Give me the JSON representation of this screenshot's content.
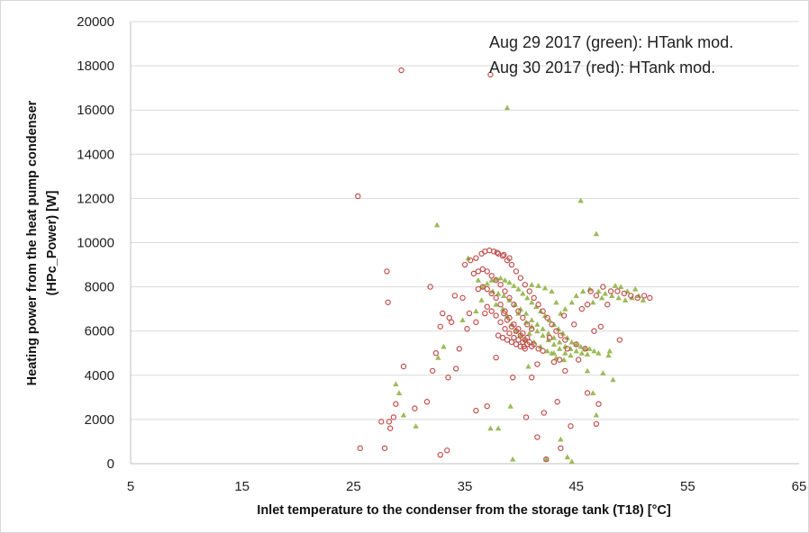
{
  "chart_data": {
    "type": "scatter",
    "xlabel": "Inlet temperature to the condenser from the storage tank (T18) [°C]",
    "ylabel_line1": "Heating power from the heat pump condenser",
    "ylabel_line2": "(HPc_Power) [W]",
    "xlim": [
      5,
      65
    ],
    "ylim": [
      0,
      20000
    ],
    "x_ticks": [
      "5",
      "15",
      "25",
      "35",
      "45",
      "55",
      "65"
    ],
    "y_ticks": [
      "0",
      "2000",
      "4000",
      "6000",
      "8000",
      "10000",
      "12000",
      "14000",
      "16000",
      "18000",
      "20000"
    ],
    "grid": "horizontal",
    "annotations": [
      "Aug 29 2017 (green): HTank mod.",
      "Aug 30 2017 (red): HTank mod."
    ],
    "colors": {
      "green": "#9bbb59",
      "red": "#c0504d",
      "grid": "#d9d9d9",
      "axis": "#bfbfbf"
    },
    "series": [
      {
        "key": "green",
        "marker": "triangle",
        "points": [
          [
            32.5,
            10800
          ],
          [
            38.8,
            16100
          ],
          [
            45.4,
            11900
          ],
          [
            46.8,
            10400
          ],
          [
            28.8,
            3600
          ],
          [
            29.1,
            3200
          ],
          [
            29.5,
            2200
          ],
          [
            30.6,
            1700
          ],
          [
            32.6,
            4800
          ],
          [
            33.1,
            5300
          ],
          [
            34.8,
            6500
          ],
          [
            35.3,
            9300
          ],
          [
            36.2,
            8300
          ],
          [
            36.5,
            7400
          ],
          [
            36.0,
            6900
          ],
          [
            37.3,
            1600
          ],
          [
            38.0,
            1600
          ],
          [
            39.1,
            2600
          ],
          [
            39.3,
            200
          ],
          [
            40.7,
            4400
          ],
          [
            42.3,
            200
          ],
          [
            43.6,
            1100
          ],
          [
            44.2,
            300
          ],
          [
            44.6,
            100
          ],
          [
            46.0,
            4200
          ],
          [
            46.5,
            3200
          ],
          [
            46.8,
            2200
          ],
          [
            47.4,
            4100
          ],
          [
            48.3,
            3800
          ],
          [
            47.9,
            4900
          ],
          [
            48.0,
            5100
          ],
          [
            36.6,
            8000
          ],
          [
            37.0,
            8150
          ],
          [
            37.4,
            8300
          ],
          [
            37.8,
            8350
          ],
          [
            38.2,
            8400
          ],
          [
            38.6,
            8300
          ],
          [
            39.0,
            8200
          ],
          [
            39.4,
            8050
          ],
          [
            39.8,
            7900
          ],
          [
            40.2,
            7700
          ],
          [
            40.6,
            7500
          ],
          [
            41.0,
            7300
          ],
          [
            41.4,
            7100
          ],
          [
            41.8,
            6900
          ],
          [
            42.2,
            6700
          ],
          [
            42.6,
            6500
          ],
          [
            43.0,
            6300
          ],
          [
            43.4,
            6100
          ],
          [
            43.8,
            5900
          ],
          [
            44.2,
            5700
          ],
          [
            44.6,
            5500
          ],
          [
            45.0,
            5400
          ],
          [
            45.4,
            5300
          ],
          [
            45.8,
            5200
          ],
          [
            46.2,
            5200
          ],
          [
            46.6,
            5100
          ],
          [
            47.0,
            5000
          ],
          [
            37.5,
            7800
          ],
          [
            38.0,
            7700
          ],
          [
            38.5,
            7600
          ],
          [
            39.0,
            7400
          ],
          [
            39.5,
            7200
          ],
          [
            40.0,
            7000
          ],
          [
            40.5,
            6800
          ],
          [
            41.0,
            6500
          ],
          [
            41.5,
            6300
          ],
          [
            42.0,
            6100
          ],
          [
            42.5,
            5900
          ],
          [
            43.0,
            5700
          ],
          [
            43.5,
            5500
          ],
          [
            44.0,
            5300
          ],
          [
            44.5,
            5200
          ],
          [
            45.0,
            5100
          ],
          [
            45.5,
            5000
          ],
          [
            46.0,
            4950
          ],
          [
            40.5,
            6400
          ],
          [
            41.0,
            6200
          ],
          [
            41.5,
            6000
          ],
          [
            42.0,
            5800
          ],
          [
            42.5,
            5600
          ],
          [
            43.0,
            5400
          ],
          [
            43.5,
            5200
          ],
          [
            44.0,
            5000
          ],
          [
            44.5,
            4900
          ],
          [
            42.8,
            5000
          ],
          [
            43.2,
            4800
          ],
          [
            43.9,
            4700
          ],
          [
            41.0,
            8100
          ],
          [
            41.6,
            8050
          ],
          [
            42.2,
            7950
          ],
          [
            42.8,
            7800
          ],
          [
            43.2,
            7300
          ],
          [
            43.6,
            6800
          ],
          [
            44.0,
            7000
          ],
          [
            44.6,
            7300
          ],
          [
            45.0,
            7600
          ],
          [
            45.6,
            7800
          ],
          [
            46.2,
            7900
          ],
          [
            47.0,
            7800
          ],
          [
            47.6,
            7700
          ],
          [
            48.2,
            7600
          ],
          [
            48.8,
            7500
          ],
          [
            49.4,
            7400
          ],
          [
            50.0,
            7500
          ],
          [
            50.6,
            7600
          ],
          [
            51.0,
            7400
          ],
          [
            49.0,
            8000
          ],
          [
            48.5,
            8050
          ],
          [
            49.6,
            7800
          ],
          [
            50.3,
            7900
          ],
          [
            47.3,
            7500
          ],
          [
            46.5,
            7300
          ],
          [
            38.8,
            6700
          ],
          [
            39.2,
            6300
          ],
          [
            39.6,
            6000
          ],
          [
            40.0,
            5800
          ],
          [
            40.4,
            5600
          ],
          [
            41.2,
            5500
          ],
          [
            41.8,
            5300
          ],
          [
            42.4,
            5100
          ],
          [
            43.0,
            5000
          ],
          [
            40.8,
            5900
          ],
          [
            39.8,
            6800
          ],
          [
            38.4,
            7000
          ],
          [
            37.8,
            7200
          ]
        ]
      },
      {
        "key": "red",
        "marker": "circle",
        "points": [
          [
            29.3,
            17800
          ],
          [
            37.3,
            17600
          ],
          [
            25.4,
            12100
          ],
          [
            28.0,
            8700
          ],
          [
            28.1,
            7300
          ],
          [
            25.6,
            700
          ],
          [
            27.5,
            1900
          ],
          [
            27.8,
            700
          ],
          [
            28.2,
            1900
          ],
          [
            28.3,
            1600
          ],
          [
            28.6,
            2100
          ],
          [
            28.8,
            2700
          ],
          [
            29.5,
            4400
          ],
          [
            30.5,
            2500
          ],
          [
            31.6,
            2800
          ],
          [
            32.1,
            4200
          ],
          [
            32.4,
            5000
          ],
          [
            32.8,
            400
          ],
          [
            33.4,
            600
          ],
          [
            33.5,
            3900
          ],
          [
            32.8,
            6200
          ],
          [
            33.0,
            6800
          ],
          [
            34.2,
            4300
          ],
          [
            34.5,
            5200
          ],
          [
            35.2,
            6100
          ],
          [
            35.4,
            6800
          ],
          [
            36.0,
            6400
          ],
          [
            36.0,
            2400
          ],
          [
            37.0,
            2600
          ],
          [
            37.8,
            4800
          ],
          [
            39.3,
            3900
          ],
          [
            40.5,
            2100
          ],
          [
            41.5,
            1200
          ],
          [
            42.1,
            2300
          ],
          [
            42.3,
            200
          ],
          [
            43.6,
            700
          ],
          [
            43.3,
            2800
          ],
          [
            44.0,
            4200
          ],
          [
            44.5,
            1700
          ],
          [
            45.2,
            4700
          ],
          [
            46.0,
            3200
          ],
          [
            46.8,
            1800
          ],
          [
            47.0,
            2700
          ],
          [
            46.6,
            6000
          ],
          [
            47.2,
            6200
          ],
          [
            48.9,
            5600
          ],
          [
            31.9,
            8000
          ],
          [
            34.1,
            7600
          ],
          [
            33.8,
            6400
          ],
          [
            36.5,
            9500
          ],
          [
            36.8,
            9600
          ],
          [
            37.2,
            9650
          ],
          [
            37.6,
            9600
          ],
          [
            38.0,
            9500
          ],
          [
            38.4,
            9400
          ],
          [
            38.8,
            9200
          ],
          [
            39.2,
            9000
          ],
          [
            39.6,
            8700
          ],
          [
            40.0,
            8400
          ],
          [
            40.4,
            8100
          ],
          [
            40.8,
            7800
          ],
          [
            41.2,
            7500
          ],
          [
            41.6,
            7200
          ],
          [
            42.0,
            6900
          ],
          [
            42.4,
            6600
          ],
          [
            42.8,
            6300
          ],
          [
            43.2,
            6000
          ],
          [
            43.6,
            5800
          ],
          [
            44.0,
            5600
          ],
          [
            35.8,
            8600
          ],
          [
            36.2,
            8700
          ],
          [
            36.6,
            8800
          ],
          [
            37.0,
            8700
          ],
          [
            37.4,
            8500
          ],
          [
            37.8,
            8300
          ],
          [
            38.2,
            8100
          ],
          [
            38.6,
            7800
          ],
          [
            39.0,
            7500
          ],
          [
            39.4,
            7200
          ],
          [
            39.8,
            6900
          ],
          [
            40.2,
            6600
          ],
          [
            40.6,
            6300
          ],
          [
            41.0,
            6100
          ],
          [
            36.2,
            7900
          ],
          [
            36.6,
            8000
          ],
          [
            37.0,
            7900
          ],
          [
            37.4,
            7700
          ],
          [
            37.8,
            7500
          ],
          [
            38.2,
            7200
          ],
          [
            38.6,
            6900
          ],
          [
            39.0,
            6600
          ],
          [
            39.4,
            6300
          ],
          [
            39.8,
            6100
          ],
          [
            40.2,
            5900
          ],
          [
            40.6,
            5700
          ],
          [
            37.0,
            7100
          ],
          [
            37.4,
            6900
          ],
          [
            37.8,
            6700
          ],
          [
            38.2,
            6400
          ],
          [
            38.6,
            6100
          ],
          [
            39.0,
            5900
          ],
          [
            39.4,
            5700
          ],
          [
            39.8,
            5600
          ],
          [
            40.2,
            5500
          ],
          [
            40.6,
            5400
          ],
          [
            41.0,
            5300
          ],
          [
            38.5,
            6800
          ],
          [
            38.8,
            6500
          ],
          [
            39.2,
            6200
          ],
          [
            39.6,
            6000
          ],
          [
            40.0,
            5800
          ],
          [
            40.4,
            5600
          ],
          [
            40.8,
            5500
          ],
          [
            41.2,
            5400
          ],
          [
            41.6,
            5200
          ],
          [
            42.0,
            5100
          ],
          [
            38.0,
            5800
          ],
          [
            38.4,
            5700
          ],
          [
            38.8,
            5600
          ],
          [
            39.2,
            5500
          ],
          [
            39.6,
            5400
          ],
          [
            40.0,
            5300
          ],
          [
            40.4,
            5200
          ],
          [
            35.0,
            9000
          ],
          [
            35.5,
            9200
          ],
          [
            36.0,
            9300
          ],
          [
            37.9,
            9550
          ],
          [
            38.5,
            9450
          ],
          [
            39.0,
            9300
          ],
          [
            43.0,
            4600
          ],
          [
            43.5,
            4700
          ],
          [
            44.2,
            5200
          ],
          [
            45.0,
            5400
          ],
          [
            45.8,
            5200
          ],
          [
            44.8,
            6300
          ],
          [
            43.9,
            6700
          ],
          [
            46.3,
            7800
          ],
          [
            46.8,
            7600
          ],
          [
            47.4,
            8000
          ],
          [
            48.1,
            7800
          ],
          [
            48.7,
            7800
          ],
          [
            49.3,
            7700
          ],
          [
            49.9,
            7600
          ],
          [
            50.5,
            7500
          ],
          [
            51.1,
            7600
          ],
          [
            51.6,
            7500
          ],
          [
            47.8,
            7200
          ],
          [
            46.0,
            7200
          ],
          [
            45.5,
            7000
          ],
          [
            42.6,
            5700
          ],
          [
            41.5,
            4500
          ],
          [
            41.0,
            3900
          ],
          [
            40.3,
            5300
          ],
          [
            36.8,
            6800
          ],
          [
            34.8,
            7500
          ],
          [
            33.6,
            6600
          ]
        ]
      }
    ]
  }
}
